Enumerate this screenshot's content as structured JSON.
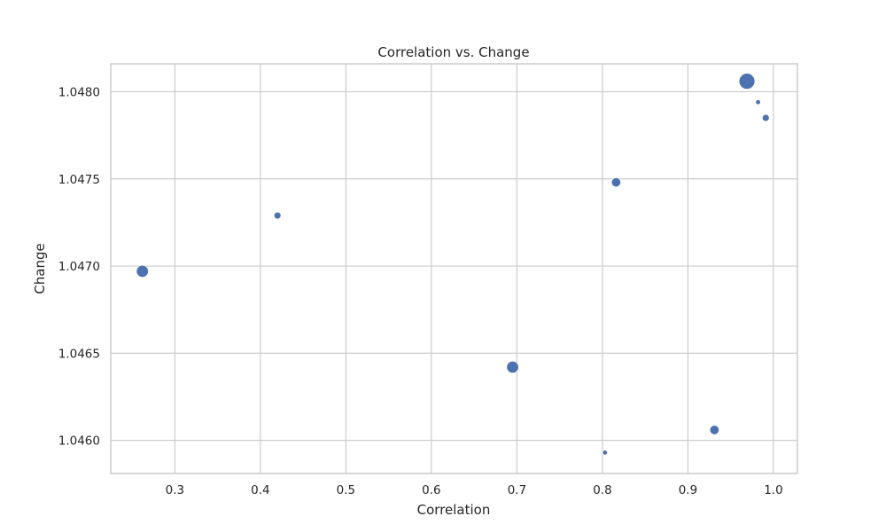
{
  "chart_data": {
    "type": "scatter",
    "title": "Correlation vs. Change",
    "xlabel": "Correlation",
    "ylabel": "Change",
    "xlim": [
      0.225,
      1.028
    ],
    "ylim": [
      1.04581,
      1.04816
    ],
    "x_ticks": [
      0.3,
      0.4,
      0.5,
      0.6,
      0.7,
      0.8,
      0.9,
      1.0
    ],
    "x_tick_labels": [
      "0.3",
      "0.4",
      "0.5",
      "0.6",
      "0.7",
      "0.8",
      "0.9",
      "1.0"
    ],
    "y_ticks": [
      1.046,
      1.0465,
      1.047,
      1.0475,
      1.048
    ],
    "y_tick_labels": [
      "1.0460",
      "1.0465",
      "1.0470",
      "1.0475",
      "1.0480"
    ],
    "grid": true,
    "marker_color": "#4c72b0",
    "points": [
      {
        "x": 0.262,
        "y": 1.04697,
        "size": 3
      },
      {
        "x": 0.42,
        "y": 1.04729,
        "size": 1
      },
      {
        "x": 0.695,
        "y": 1.04642,
        "size": 3
      },
      {
        "x": 0.803,
        "y": 1.04593,
        "size": 0
      },
      {
        "x": 0.816,
        "y": 1.04748,
        "size": 2
      },
      {
        "x": 0.931,
        "y": 1.04606,
        "size": 2
      },
      {
        "x": 0.969,
        "y": 1.04806,
        "size": 4
      },
      {
        "x": 0.982,
        "y": 1.04794,
        "size": 0
      },
      {
        "x": 0.991,
        "y": 1.04785,
        "size": 1
      }
    ]
  }
}
